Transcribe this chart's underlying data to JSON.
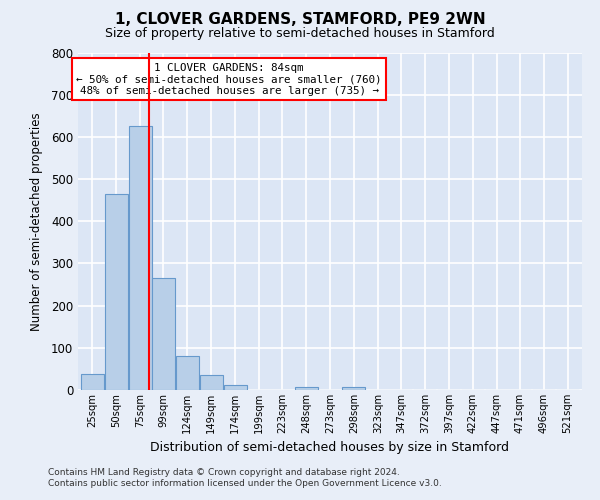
{
  "title": "1, CLOVER GARDENS, STAMFORD, PE9 2WN",
  "subtitle": "Size of property relative to semi-detached houses in Stamford",
  "xlabel": "Distribution of semi-detached houses by size in Stamford",
  "ylabel": "Number of semi-detached properties",
  "bin_labels": [
    "25sqm",
    "50sqm",
    "75sqm",
    "99sqm",
    "124sqm",
    "149sqm",
    "174sqm",
    "199sqm",
    "223sqm",
    "248sqm",
    "273sqm",
    "298sqm",
    "323sqm",
    "347sqm",
    "372sqm",
    "397sqm",
    "422sqm",
    "447sqm",
    "471sqm",
    "496sqm",
    "521sqm"
  ],
  "bar_values": [
    38,
    465,
    625,
    265,
    80,
    35,
    13,
    0,
    0,
    8,
    0,
    7,
    0,
    0,
    0,
    0,
    0,
    0,
    0,
    0,
    0
  ],
  "bar_color": "#b8cfe8",
  "bar_edge_color": "#6699cc",
  "annotation_title": "1 CLOVER GARDENS: 84sqm",
  "annotation_line1": "← 50% of semi-detached houses are smaller (760)",
  "annotation_line2": "48% of semi-detached houses are larger (735) →",
  "ylim": [
    0,
    800
  ],
  "yticks": [
    0,
    100,
    200,
    300,
    400,
    500,
    600,
    700,
    800
  ],
  "footnote1": "Contains HM Land Registry data © Crown copyright and database right 2024.",
  "footnote2": "Contains public sector information licensed under the Open Government Licence v3.0.",
  "background_color": "#e8eef8",
  "plot_bg_color": "#dce6f5",
  "grid_color": "#ffffff",
  "num_bins": 21,
  "bin_width": 25
}
